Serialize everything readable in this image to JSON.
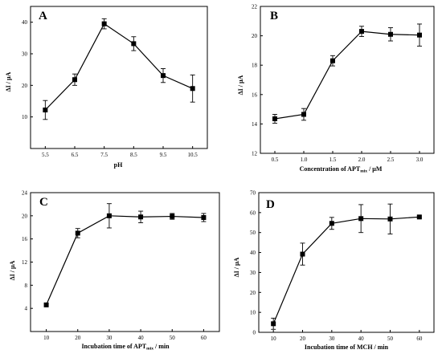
{
  "chart_data": [
    {
      "panel": "A",
      "type": "line",
      "xlabel": "pH",
      "ylabel": "ΔI / μA",
      "xtick_labels": [
        "5.5",
        "6.5",
        "7.5",
        "8.5",
        "9.5",
        "10.5"
      ],
      "yticks": [
        10,
        20,
        30,
        40
      ],
      "ylim": [
        0,
        45
      ],
      "x": [
        5.5,
        6.5,
        7.5,
        8.5,
        9.5,
        10.5
      ],
      "xlim": [
        5.0,
        11.0
      ],
      "values": [
        12.2,
        21.8,
        39.5,
        33.2,
        23.1,
        19.0
      ],
      "errors": [
        3.0,
        1.8,
        1.6,
        2.2,
        2.2,
        4.3
      ]
    },
    {
      "panel": "B",
      "type": "line",
      "xlabel": "Concentration of APTmix / μM",
      "ylabel": "ΔI / μA",
      "xtick_labels": [
        "0.5",
        "1.0",
        "1.5",
        "2.0",
        "2.5",
        "3.0"
      ],
      "yticks": [
        12,
        14,
        16,
        18,
        20,
        22
      ],
      "ylim": [
        12,
        22
      ],
      "x": [
        0.5,
        1.0,
        1.5,
        2.0,
        2.5,
        3.0
      ],
      "xlim": [
        0.25,
        3.25
      ],
      "values": [
        14.35,
        14.65,
        18.3,
        20.3,
        20.1,
        20.05
      ],
      "errors": [
        0.3,
        0.4,
        0.35,
        0.35,
        0.45,
        0.75
      ]
    },
    {
      "panel": "C",
      "type": "line",
      "xlabel": "Incubation time of APTmix / min",
      "ylabel": "ΔI / μA",
      "xtick_labels": [
        "10",
        "20",
        "30",
        "40",
        "50",
        "60"
      ],
      "yticks": [
        4,
        8,
        12,
        16,
        20,
        24
      ],
      "ylim": [
        0,
        24
      ],
      "x": [
        10,
        20,
        30,
        40,
        50,
        60
      ],
      "xlim": [
        5,
        65
      ],
      "values": [
        4.6,
        17.0,
        20.0,
        19.8,
        19.9,
        19.7
      ],
      "errors": [
        0.0,
        0.8,
        2.1,
        1.0,
        0.5,
        0.7
      ]
    },
    {
      "panel": "D",
      "type": "line",
      "xlabel": "Incubation time of MCH / min",
      "ylabel": "ΔI / μA",
      "xtick_labels": [
        "10",
        "20",
        "30",
        "40",
        "50",
        "60"
      ],
      "yticks": [
        0,
        10,
        20,
        30,
        40,
        50,
        60,
        70
      ],
      "ylim": [
        0,
        70
      ],
      "x": [
        10,
        20,
        30,
        40,
        50,
        60
      ],
      "xlim": [
        5,
        65
      ],
      "values": [
        4.3,
        39.2,
        54.6,
        57.0,
        56.8,
        57.8
      ],
      "errors": [
        2.8,
        5.5,
        3.0,
        7.0,
        7.5,
        0.5
      ]
    }
  ]
}
